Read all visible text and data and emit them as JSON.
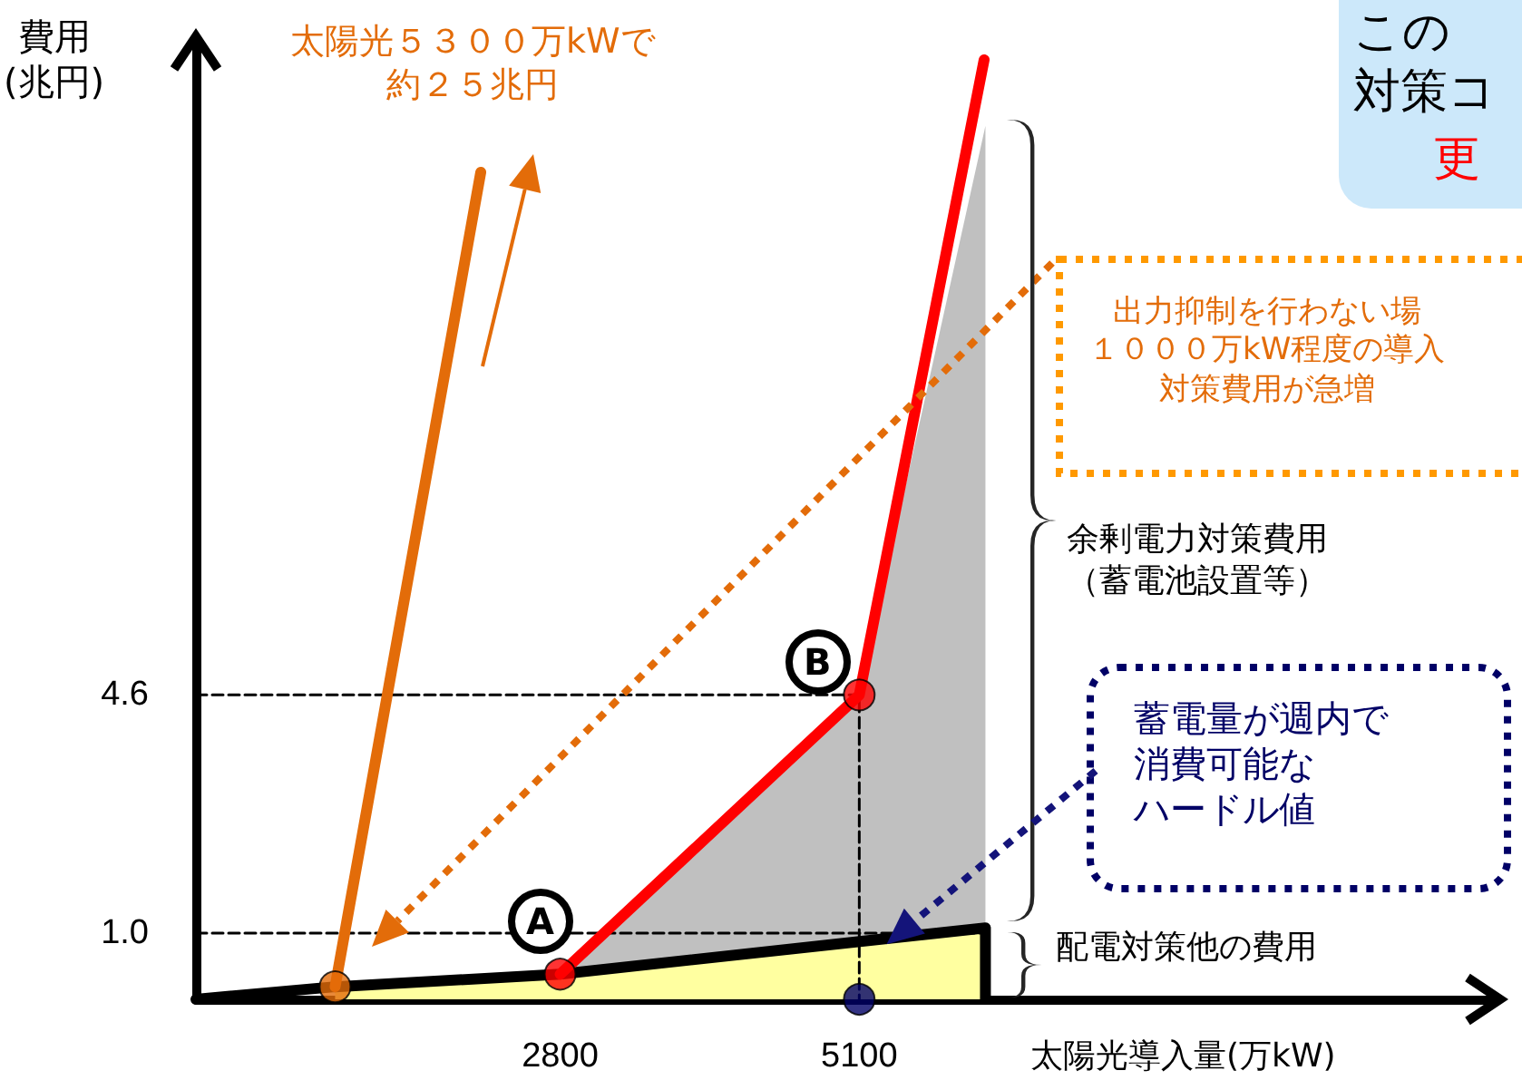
{
  "chart_data": {
    "type": "line",
    "ylabel": "費用\n(兆円)",
    "xlabel": "太陽光導入量(万kW)",
    "xlim": [
      0,
      10000
    ],
    "ylim": [
      0,
      14.5
    ],
    "xticks": [
      2800,
      5100
    ],
    "yticks": [
      {
        "value": 1,
        "label": "1.0"
      },
      {
        "value": 4.6,
        "label": "4.6"
      }
    ],
    "grid": false,
    "series": [
      {
        "type": "area",
        "color": "#c0c0c0",
        "x": [
          2800,
          5100,
          6070
        ],
        "values": [
          0.38,
          4.6,
          13.2
        ]
      },
      {
        "type": "area",
        "color": "#ffffa0",
        "x": [
          1070,
          2800,
          6070
        ],
        "values": [
          0.19,
          0.38,
          1.08
        ]
      },
      {
        "color": "#000000",
        "x": [
          0,
          1070,
          2800,
          6070,
          6070
        ],
        "values": [
          0,
          0.19,
          0.38,
          1.08,
          0
        ]
      },
      {
        "color": "#000000",
        "line_style": "dashed",
        "x": [
          0,
          5100,
          5100
        ],
        "values": [
          4.6,
          4.6,
          0
        ]
      },
      {
        "color": "#000000",
        "line_style": "dashed",
        "x": [
          0,
          6070
        ],
        "values": [
          1,
          1
        ]
      },
      {
        "color": "#ff0000",
        "x": [
          2800,
          5100,
          6060
        ],
        "values": [
          0.38,
          4.6,
          14.2
        ]
      },
      {
        "color": "#e36c09",
        "x": [
          1070,
          2190
        ],
        "values": [
          0.19,
          12.5
        ]
      },
      {
        "type": "scatter",
        "marker": "circle",
        "color": "#ff0000",
        "x": [
          2800,
          5100
        ],
        "values": [
          0.38,
          4.6
        ]
      },
      {
        "type": "scatter",
        "marker": "circle",
        "color": "#e36c09",
        "x": [
          1070
        ],
        "values": [
          0.19
        ]
      },
      {
        "type": "scatter",
        "marker": "circle",
        "color": "#000066",
        "x": [
          5100
        ],
        "values": [
          0
        ]
      }
    ],
    "annotations": [
      {
        "text": "A",
        "x": 2800,
        "y": 0.38
      },
      {
        "text": "B",
        "x": 5100,
        "y": 4.6
      },
      "太陽光５３００万kWで約２５兆円",
      "出力抑制を行わない場１０００万kW程度の導入対策費用が急増",
      "余剰電力対策費用（蓄電池設置等）",
      {
        "text": "蓄電量が週内で消費可能なハードル値",
        "x": 5450,
        "y": 1.06
      },
      "配電対策他の費用",
      "この対策コ",
      "更"
    ]
  }
}
